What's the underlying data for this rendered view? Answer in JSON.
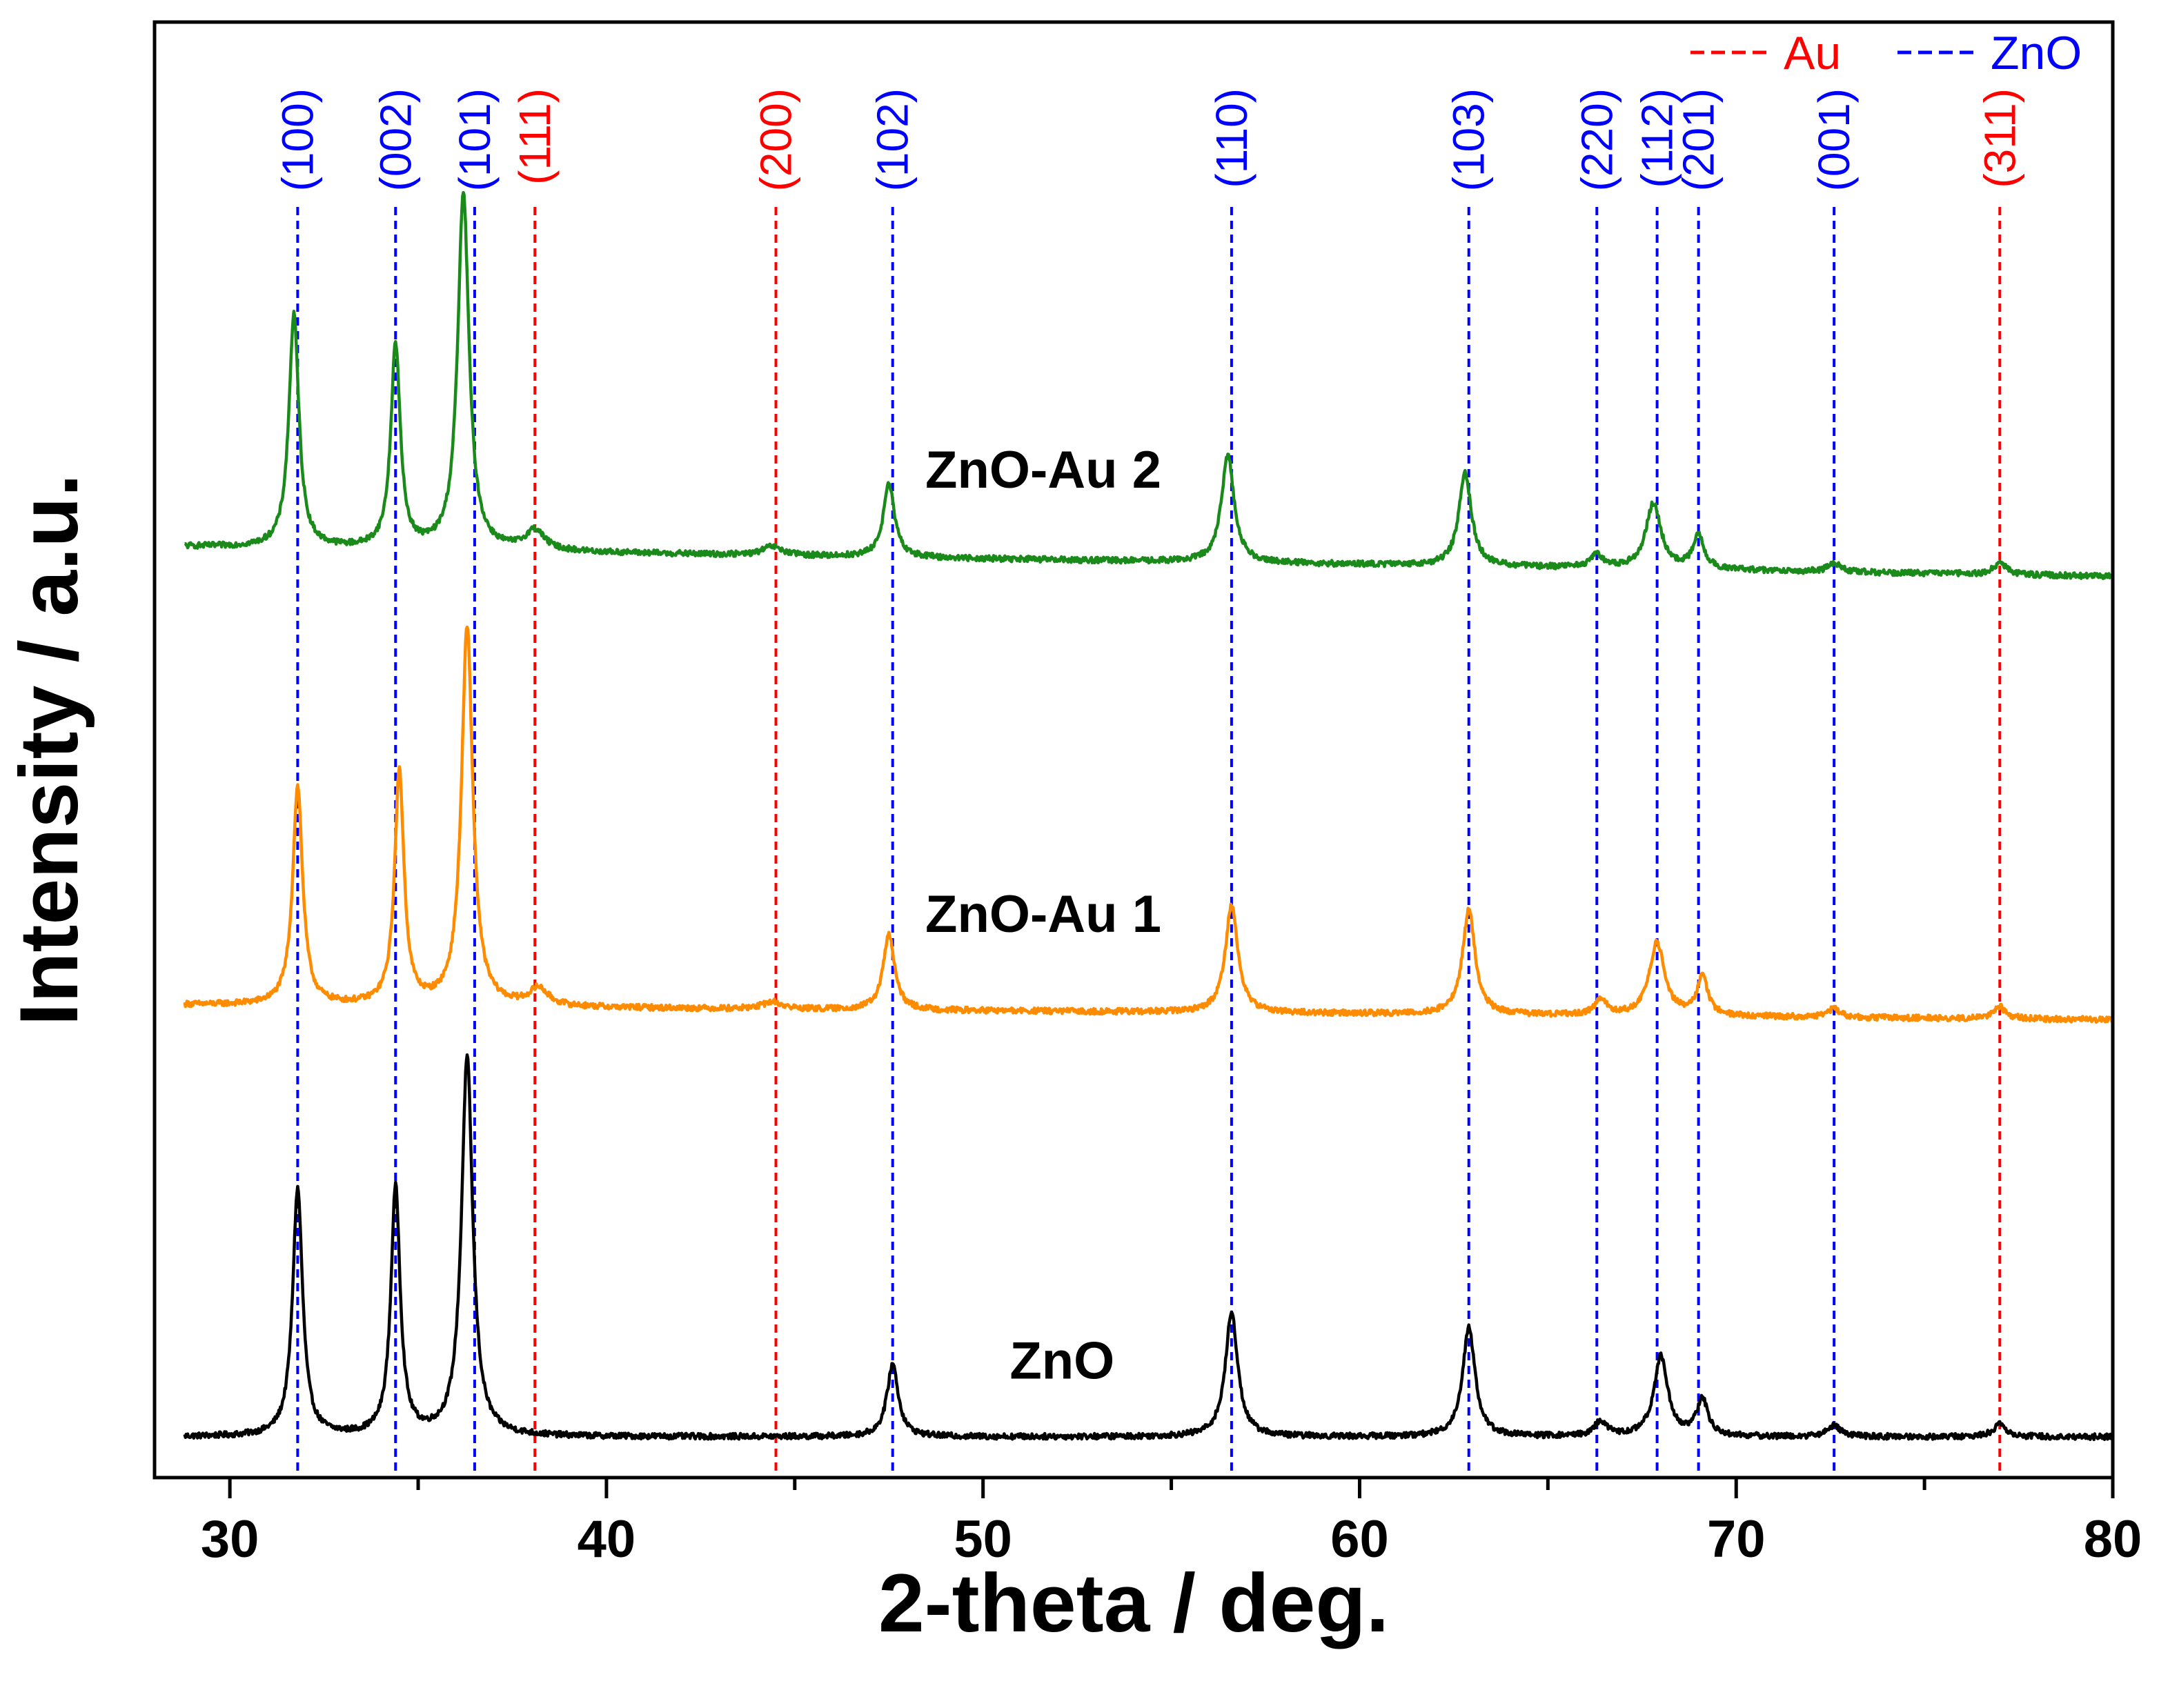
{
  "chart_data": {
    "type": "line",
    "title": "",
    "xlabel": "2-theta / deg.",
    "ylabel": "Intensity / a.u.",
    "xlim": [
      28,
      80
    ],
    "ylim": [
      0,
      100
    ],
    "grid": false,
    "xticks": [
      30,
      40,
      50,
      60,
      70,
      80
    ],
    "xtick_labels": [
      "30",
      "40",
      "50",
      "60",
      "70",
      "80"
    ],
    "legend": {
      "placement": "top-right",
      "entries": [
        {
          "label": "Au",
          "color": "#ff0000",
          "style": "dashed"
        },
        {
          "label": "ZnO",
          "color": "#0000ff",
          "style": "dashed"
        }
      ]
    },
    "reference_lines": [
      {
        "label": "(100)",
        "x": 31.8,
        "phase": "ZnO",
        "color": "#0000ff"
      },
      {
        "label": "(002)",
        "x": 34.4,
        "phase": "ZnO",
        "color": "#0000ff"
      },
      {
        "label": "(101)",
        "x": 36.5,
        "phase": "ZnO",
        "color": "#0000ff"
      },
      {
        "label": "(111)",
        "x": 38.1,
        "phase": "Au",
        "color": "#ff0000"
      },
      {
        "label": "(200)",
        "x": 44.5,
        "phase": "Au",
        "color": "#ff0000"
      },
      {
        "label": "(102)",
        "x": 47.6,
        "phase": "ZnO",
        "color": "#0000ff"
      },
      {
        "label": "(110)",
        "x": 56.6,
        "phase": "ZnO",
        "color": "#0000ff"
      },
      {
        "label": "(103)",
        "x": 62.9,
        "phase": "ZnO",
        "color": "#0000ff"
      },
      {
        "label": "(220)",
        "x": 66.3,
        "phase": "ZnO",
        "color": "#0000ff"
      },
      {
        "label": "(112)",
        "x": 67.9,
        "phase": "ZnO",
        "color": "#0000ff"
      },
      {
        "label": "(201)",
        "x": 69.0,
        "phase": "ZnO",
        "color": "#0000ff"
      },
      {
        "label": "(001)",
        "x": 72.6,
        "phase": "ZnO",
        "color": "#0000ff"
      },
      {
        "label": "(311)",
        "x": 77.0,
        "phase": "Au",
        "color": "#ff0000"
      }
    ],
    "series": [
      {
        "name": "ZnO",
        "color": "#000000",
        "baseline": 2.8,
        "baseline_slope": 0,
        "noise": 0.2,
        "peaks": [
          {
            "x": 31.8,
            "height": 17,
            "width": 0.16
          },
          {
            "x": 34.4,
            "height": 17,
            "width": 0.15
          },
          {
            "x": 36.3,
            "height": 26,
            "width": 0.18
          },
          {
            "x": 47.6,
            "height": 5,
            "width": 0.18
          },
          {
            "x": 56.6,
            "height": 8.5,
            "width": 0.2
          },
          {
            "x": 62.9,
            "height": 7.5,
            "width": 0.2
          },
          {
            "x": 66.4,
            "height": 1,
            "width": 0.2
          },
          {
            "x": 68.0,
            "height": 5.5,
            "width": 0.22
          },
          {
            "x": 69.1,
            "height": 2.5,
            "width": 0.18
          },
          {
            "x": 72.6,
            "height": 0.8,
            "width": 0.2
          },
          {
            "x": 77.0,
            "height": 0.9,
            "width": 0.2
          }
        ]
      },
      {
        "name": "ZnO-Au 1",
        "color": "#ff8c00",
        "baseline": 32.5,
        "baseline_slope": -0.02,
        "noise": 0.2,
        "peaks": [
          {
            "x": 31.8,
            "height": 15,
            "width": 0.16
          },
          {
            "x": 34.5,
            "height": 16,
            "width": 0.15
          },
          {
            "x": 36.3,
            "height": 26,
            "width": 0.18
          },
          {
            "x": 38.2,
            "height": 1.2,
            "width": 0.3
          },
          {
            "x": 44.4,
            "height": 0.5,
            "width": 0.3
          },
          {
            "x": 47.5,
            "height": 5.2,
            "width": 0.18
          },
          {
            "x": 56.6,
            "height": 7.4,
            "width": 0.2
          },
          {
            "x": 62.9,
            "height": 7.2,
            "width": 0.2
          },
          {
            "x": 66.4,
            "height": 1,
            "width": 0.2
          },
          {
            "x": 67.9,
            "height": 5,
            "width": 0.24
          },
          {
            "x": 69.1,
            "height": 2.6,
            "width": 0.18
          },
          {
            "x": 72.6,
            "height": 0.6,
            "width": 0.2
          },
          {
            "x": 77.0,
            "height": 0.8,
            "width": 0.2
          }
        ]
      },
      {
        "name": "ZnO-Au 2",
        "color": "#1a8a1a",
        "baseline": 64,
        "baseline_slope": -0.04,
        "noise": 0.2,
        "peaks": [
          {
            "x": 31.7,
            "height": 16,
            "width": 0.16
          },
          {
            "x": 34.4,
            "height": 14,
            "width": 0.15
          },
          {
            "x": 36.2,
            "height": 24.5,
            "width": 0.18
          },
          {
            "x": 38.1,
            "height": 1.4,
            "width": 0.3
          },
          {
            "x": 44.4,
            "height": 0.6,
            "width": 0.3
          },
          {
            "x": 47.5,
            "height": 5,
            "width": 0.18
          },
          {
            "x": 56.5,
            "height": 7.4,
            "width": 0.2
          },
          {
            "x": 62.8,
            "height": 6.4,
            "width": 0.2
          },
          {
            "x": 66.3,
            "height": 0.9,
            "width": 0.2
          },
          {
            "x": 67.8,
            "height": 4.5,
            "width": 0.24
          },
          {
            "x": 69.0,
            "height": 2.3,
            "width": 0.18
          },
          {
            "x": 72.6,
            "height": 0.6,
            "width": 0.2
          },
          {
            "x": 77.0,
            "height": 0.8,
            "width": 0.2
          }
        ]
      }
    ],
    "series_labels": [
      {
        "text": "ZnO",
        "x": 52.1,
        "y": 6.8
      },
      {
        "text": "ZnO-Au 1",
        "x": 51.6,
        "y": 37.5
      },
      {
        "text": "ZnO-Au 2",
        "x": 51.6,
        "y": 68
      }
    ]
  }
}
